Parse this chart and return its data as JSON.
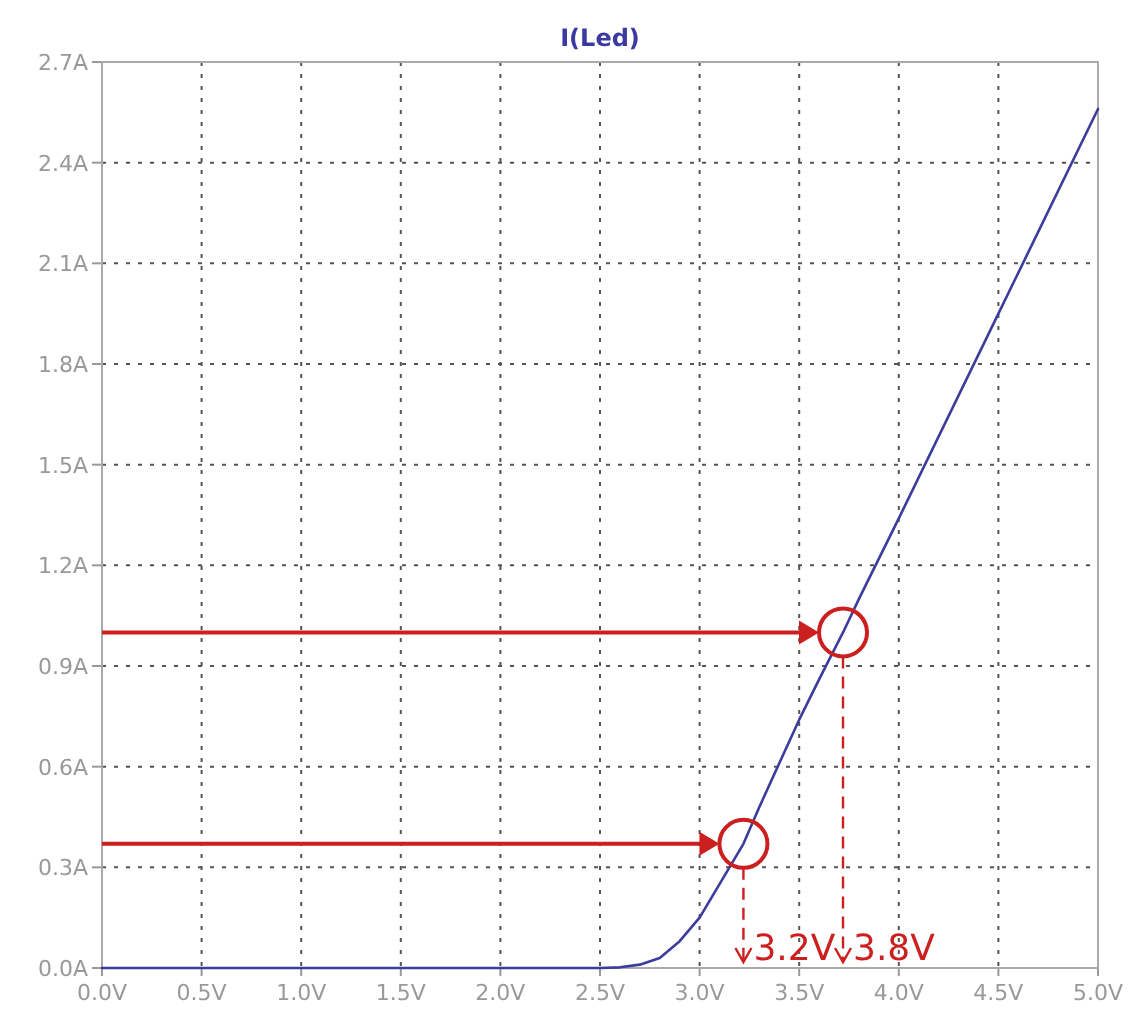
{
  "chart_data": {
    "type": "line",
    "title": "I(Led)",
    "x": [
      0,
      2.5,
      2.6,
      2.7,
      2.8,
      2.9,
      3.0,
      3.1,
      3.22,
      3.3,
      3.4,
      3.5,
      3.6,
      3.72,
      3.8,
      4.0,
      4.5,
      5.0
    ],
    "series": [
      {
        "color": "#3c3c9c",
        "values": [
          0,
          0,
          0.002,
          0.01,
          0.03,
          0.08,
          0.15,
          0.25,
          0.37,
          0.48,
          0.61,
          0.74,
          0.86,
          1.0,
          1.1,
          1.34,
          1.95,
          2.56
        ]
      }
    ],
    "xlim": [
      0,
      5
    ],
    "ylim": [
      0,
      2.7
    ],
    "xticks": [
      {
        "value": 0,
        "label": "0.0V"
      },
      {
        "value": 0.5,
        "label": "0.5V"
      },
      {
        "value": 1,
        "label": "1.0V"
      },
      {
        "value": 1.5,
        "label": "1.5V"
      },
      {
        "value": 2,
        "label": "2.0V"
      },
      {
        "value": 2.5,
        "label": "2.5V"
      },
      {
        "value": 3,
        "label": "3.0V"
      },
      {
        "value": 3.5,
        "label": "3.5V"
      },
      {
        "value": 4,
        "label": "4.0V"
      },
      {
        "value": 4.5,
        "label": "4.5V"
      },
      {
        "value": 5,
        "label": "5.0V"
      }
    ],
    "yticks": [
      {
        "value": 0,
        "label": "0.0A"
      },
      {
        "value": 0.3,
        "label": "0.3A"
      },
      {
        "value": 0.6,
        "label": "0.6A"
      },
      {
        "value": 0.9,
        "label": "0.9A"
      },
      {
        "value": 1.2,
        "label": "1.2A"
      },
      {
        "value": 1.5,
        "label": "1.5A"
      },
      {
        "value": 1.8,
        "label": "1.8A"
      },
      {
        "value": 2.1,
        "label": "2.1A"
      },
      {
        "value": 2.4,
        "label": "2.4A"
      },
      {
        "value": 2.7,
        "label": "2.7A"
      }
    ],
    "grid": true,
    "marker": "none",
    "line_style": "solid",
    "ref_lines": [
      {
        "axis": "y",
        "value": 0.37,
        "color": "#cc1f1f",
        "line_style": "solid"
      },
      {
        "axis": "y",
        "value": 1.0,
        "color": "#cc1f1f",
        "line_style": "solid"
      },
      {
        "axis": "x",
        "value": 3.22,
        "label": "3.2V",
        "color": "#cc1f1f",
        "line_style": "dashed"
      },
      {
        "axis": "x",
        "value": 3.72,
        "label": "3.8V",
        "color": "#cc1f1f",
        "line_style": "dashed"
      }
    ]
  }
}
